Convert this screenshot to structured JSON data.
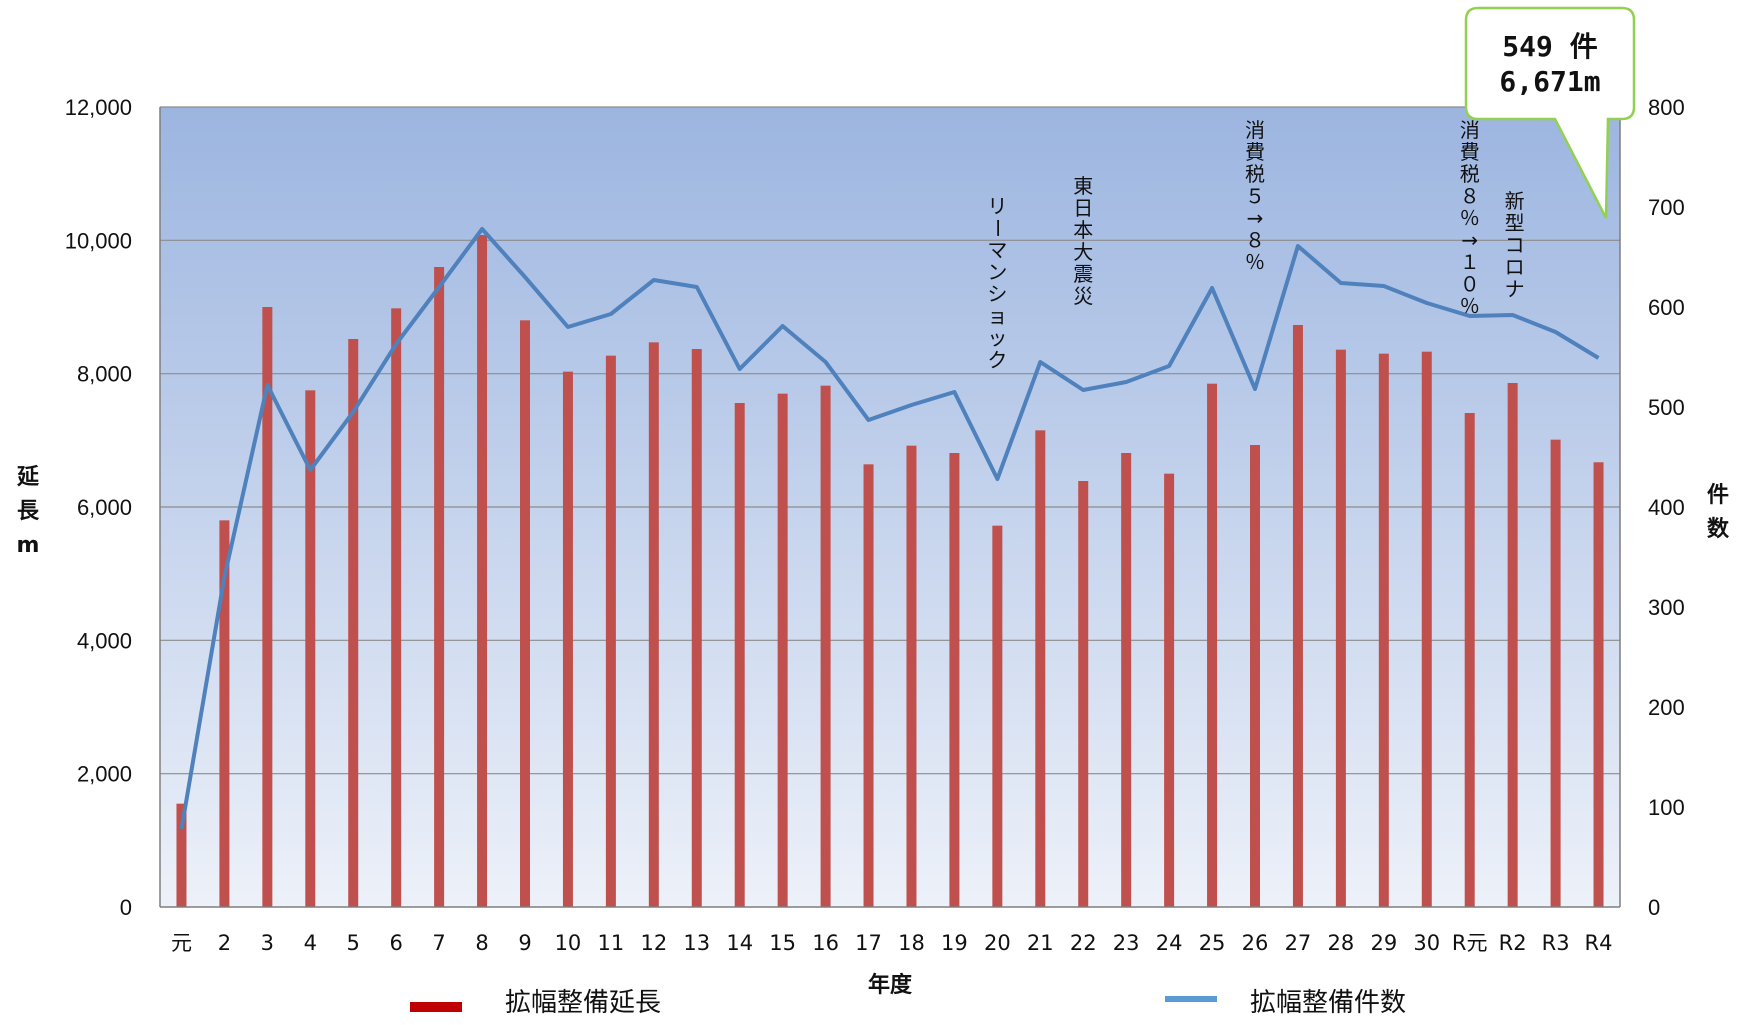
{
  "chart_data": {
    "type": "bar",
    "xlabel": "年度",
    "ylabel": "延長m",
    "y2label": "件数",
    "ylim": [
      0,
      12000
    ],
    "y2lim": [
      0,
      800
    ],
    "yticks": [
      "0",
      "2,000",
      "4,000",
      "6,000",
      "8,000",
      "10,000",
      "12,000"
    ],
    "y2ticks": [
      "0",
      "100",
      "200",
      "300",
      "400",
      "500",
      "600",
      "700",
      "800"
    ],
    "categories": [
      "元",
      "2",
      "3",
      "4",
      "5",
      "6",
      "7",
      "8",
      "9",
      "10",
      "11",
      "12",
      "13",
      "14",
      "15",
      "16",
      "17",
      "18",
      "19",
      "20",
      "21",
      "22",
      "23",
      "24",
      "25",
      "26",
      "27",
      "28",
      "29",
      "30",
      "R元",
      "R2",
      "R3",
      "R4"
    ],
    "series": [
      {
        "name": "拡幅整備延長",
        "type": "bar",
        "axis": "left",
        "color": "#c0504d",
        "values": [
          1550,
          5800,
          9000,
          7750,
          8520,
          8980,
          9600,
          10080,
          8800,
          8030,
          8270,
          8470,
          8370,
          7560,
          7700,
          7820,
          6640,
          6920,
          6810,
          5720,
          7150,
          6390,
          6810,
          6500,
          7850,
          6930,
          8730,
          8360,
          8300,
          8330,
          7410,
          7860,
          7010,
          6671
        ]
      },
      {
        "name": "拡幅整備件数",
        "type": "line",
        "axis": "right",
        "color": "#4f81bd",
        "values": [
          78,
          330,
          522,
          437,
          495,
          563,
          620,
          678,
          630,
          580,
          593,
          627,
          620,
          538,
          581,
          545,
          487,
          502,
          515,
          428,
          545,
          517,
          525,
          541,
          619,
          518,
          661,
          624,
          621,
          604,
          591,
          592,
          575,
          549
        ]
      }
    ],
    "annotations": [
      {
        "text": "リーマンショック",
        "category": "20"
      },
      {
        "text": "東日本大震災",
        "category": "22"
      },
      {
        "text": "消費税５→８％",
        "category": "26"
      },
      {
        "text": "消費税８％→１０％",
        "category": "R元"
      },
      {
        "text": "新型コロナ",
        "category": "R2"
      }
    ],
    "callout": {
      "line1": "549 件",
      "line2": "6,671m"
    },
    "legend": {
      "placement": "bottom"
    }
  }
}
